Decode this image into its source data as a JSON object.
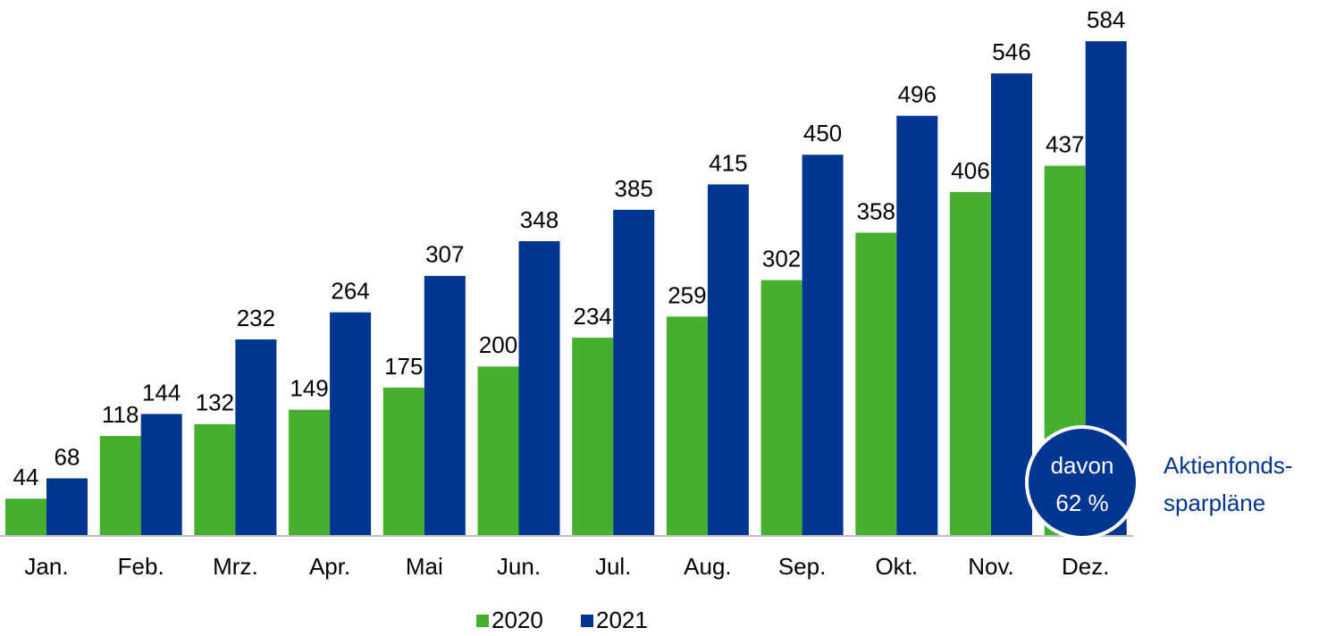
{
  "chart_data": {
    "type": "bar",
    "categories": [
      "Jan.",
      "Feb.",
      "Mrz.",
      "Apr.",
      "Mai",
      "Jun.",
      "Jul.",
      "Aug.",
      "Sep.",
      "Okt.",
      "Nov.",
      "Dez."
    ],
    "series": [
      {
        "name": "2020",
        "color": "#45b02e",
        "values": [
          44,
          118,
          132,
          149,
          175,
          200,
          234,
          259,
          302,
          358,
          406,
          437
        ]
      },
      {
        "name": "2021",
        "color": "#003591",
        "values": [
          68,
          144,
          232,
          264,
          307,
          348,
          385,
          415,
          450,
          496,
          546,
          584
        ]
      }
    ],
    "ylim": [
      0,
      600
    ],
    "legend": "bottom",
    "annotation": {
      "circle": [
        "davon",
        "62 %"
      ],
      "text": [
        "Aktienfonds-",
        "sparpläne"
      ]
    }
  }
}
